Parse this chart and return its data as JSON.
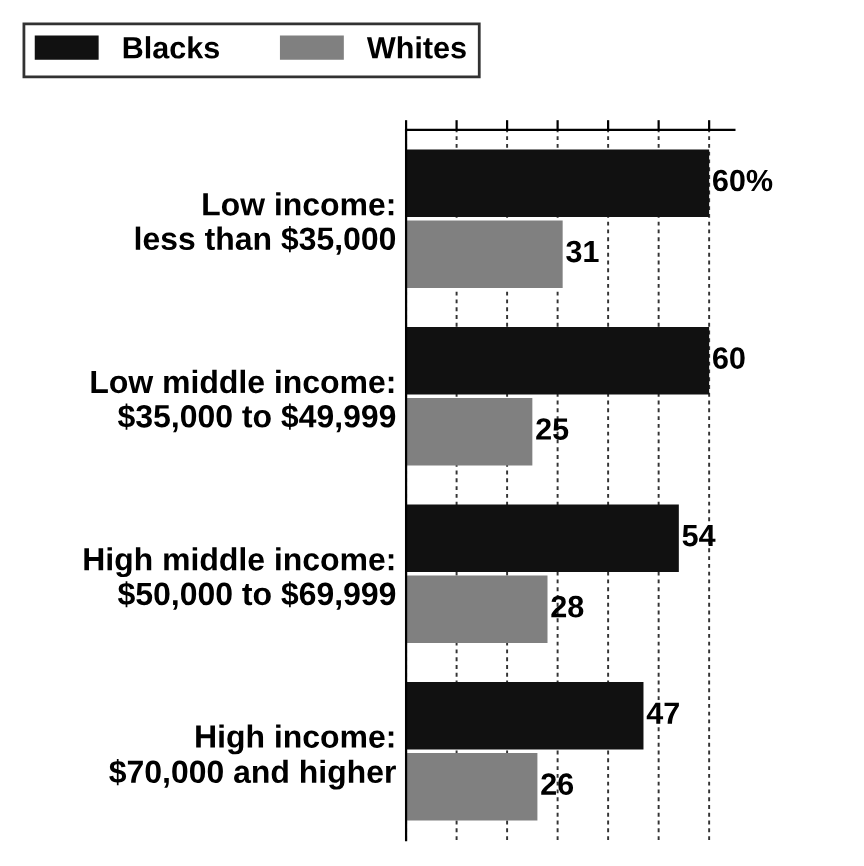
{
  "chart_data": {
    "type": "bar",
    "orientation": "horizontal",
    "categories": [
      "Low income:\nless than $35,000",
      "Low middle income:\n$35,000 to $49,999",
      "High middle income:\n$50,000 to $69,999",
      "High income:\n$70,000 and higher"
    ],
    "series": [
      {
        "name": "Blacks",
        "color": "#111111",
        "values": [
          60,
          60,
          54,
          47
        ],
        "value_labels": [
          "60%",
          "60",
          "54",
          "47"
        ]
      },
      {
        "name": "Whites",
        "color": "#808080",
        "values": [
          31,
          25,
          28,
          26
        ],
        "value_labels": [
          "31",
          "25",
          "28",
          "26"
        ]
      }
    ],
    "xlim": [
      0,
      65
    ],
    "xticks": [
      {
        "value": 0,
        "label": null
      },
      {
        "value": 10,
        "label": null
      },
      {
        "value": 20,
        "label": null
      },
      {
        "value": 30,
        "label": null
      },
      {
        "value": 40,
        "label": null
      },
      {
        "value": 50,
        "label": null
      },
      {
        "value": 60,
        "label": null
      }
    ],
    "grid": "x",
    "legend": "top left"
  }
}
